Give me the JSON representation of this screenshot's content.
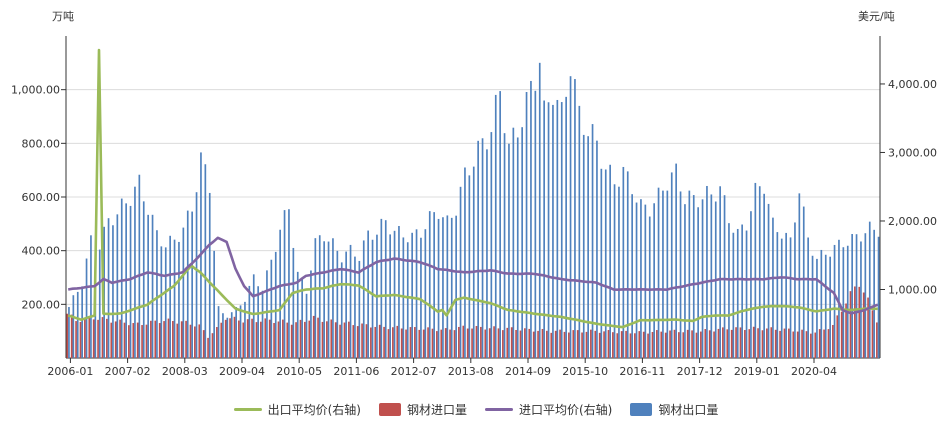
{
  "chart_data": {
    "type": "bar+line",
    "left_axis_unit": "万吨",
    "right_axis_unit": "美元/吨",
    "left_ticks": [
      "200.00",
      "400.00",
      "600.00",
      "800.00",
      "1,000.00"
    ],
    "right_ticks": [
      "1,000.00",
      "2,000.00",
      "3,000.00",
      "4,000.00"
    ],
    "ylim_left": [
      0,
      1200
    ],
    "ylim_right": [
      0,
      4700
    ],
    "x_ticks": [
      "2006-01",
      "2007-02",
      "2008-03",
      "2009-04",
      "2010-05",
      "2011-06",
      "2012-07",
      "2013-08",
      "2014-09",
      "2015-10",
      "2016-11",
      "2017-12",
      "2019-01",
      "2020-04"
    ],
    "series": [
      {
        "name": "出口平均价(右轴)",
        "type": "line",
        "axis": "right",
        "color": "#9bbb59",
        "anchors": [
          [
            0,
            620
          ],
          [
            3,
            560
          ],
          [
            6,
            620
          ],
          [
            7,
            4500
          ],
          [
            8,
            640
          ],
          [
            12,
            650
          ],
          [
            18,
            780
          ],
          [
            24,
            1050
          ],
          [
            28,
            1350
          ],
          [
            30,
            1250
          ],
          [
            34,
            980
          ],
          [
            38,
            720
          ],
          [
            42,
            640
          ],
          [
            48,
            700
          ],
          [
            51,
            950
          ],
          [
            54,
            1000
          ],
          [
            58,
            1020
          ],
          [
            62,
            1080
          ],
          [
            66,
            1060
          ],
          [
            70,
            900
          ],
          [
            74,
            920
          ],
          [
            80,
            860
          ],
          [
            84,
            680
          ],
          [
            85,
            700
          ],
          [
            86,
            620
          ],
          [
            88,
            850
          ],
          [
            90,
            880
          ],
          [
            96,
            800
          ],
          [
            100,
            700
          ],
          [
            108,
            630
          ],
          [
            112,
            600
          ],
          [
            120,
            500
          ],
          [
            126,
            450
          ],
          [
            130,
            550
          ],
          [
            138,
            560
          ],
          [
            142,
            540
          ],
          [
            144,
            600
          ],
          [
            147,
            620
          ],
          [
            150,
            620
          ],
          [
            154,
            700
          ],
          [
            158,
            750
          ],
          [
            162,
            760
          ],
          [
            166,
            740
          ],
          [
            170,
            680
          ],
          [
            174,
            720
          ],
          [
            178,
            700
          ],
          [
            181,
            720
          ],
          [
            184,
            720
          ]
        ]
      },
      {
        "name": "钢材进口量",
        "type": "bar",
        "axis": "left",
        "color": "#c0504d",
        "anchors": [
          [
            0,
            165
          ],
          [
            2,
            140
          ],
          [
            6,
            150
          ],
          [
            10,
            140
          ],
          [
            16,
            125
          ],
          [
            22,
            140
          ],
          [
            26,
            135
          ],
          [
            30,
            120
          ],
          [
            32,
            80
          ],
          [
            34,
            110
          ],
          [
            36,
            150
          ],
          [
            40,
            140
          ],
          [
            46,
            140
          ],
          [
            52,
            130
          ],
          [
            56,
            150
          ],
          [
            60,
            135
          ],
          [
            66,
            125
          ],
          [
            72,
            115
          ],
          [
            80,
            110
          ],
          [
            86,
            105
          ],
          [
            90,
            115
          ],
          [
            100,
            110
          ],
          [
            110,
            100
          ],
          [
            120,
            100
          ],
          [
            130,
            95
          ],
          [
            136,
            100
          ],
          [
            144,
            100
          ],
          [
            150,
            110
          ],
          [
            158,
            110
          ],
          [
            164,
            105
          ],
          [
            170,
            95
          ],
          [
            174,
            120
          ],
          [
            178,
            240
          ],
          [
            180,
            280
          ],
          [
            184,
            145
          ]
        ]
      },
      {
        "name": "进口平均价(右轴)",
        "type": "line",
        "axis": "right",
        "color": "#8064a2",
        "anchors": [
          [
            0,
            1000
          ],
          [
            6,
            1050
          ],
          [
            8,
            1150
          ],
          [
            10,
            1100
          ],
          [
            14,
            1150
          ],
          [
            18,
            1250
          ],
          [
            22,
            1200
          ],
          [
            26,
            1250
          ],
          [
            30,
            1500
          ],
          [
            32,
            1650
          ],
          [
            34,
            1750
          ],
          [
            36,
            1700
          ],
          [
            38,
            1300
          ],
          [
            40,
            1050
          ],
          [
            42,
            900
          ],
          [
            44,
            950
          ],
          [
            48,
            1050
          ],
          [
            52,
            1100
          ],
          [
            54,
            1200
          ],
          [
            58,
            1250
          ],
          [
            62,
            1300
          ],
          [
            66,
            1250
          ],
          [
            70,
            1400
          ],
          [
            74,
            1450
          ],
          [
            80,
            1400
          ],
          [
            84,
            1300
          ],
          [
            90,
            1250
          ],
          [
            96,
            1280
          ],
          [
            100,
            1230
          ],
          [
            106,
            1230
          ],
          [
            112,
            1150
          ],
          [
            120,
            1100
          ],
          [
            124,
            1000
          ],
          [
            126,
            1000
          ],
          [
            132,
            1000
          ],
          [
            136,
            1000
          ],
          [
            140,
            1050
          ],
          [
            144,
            1100
          ],
          [
            148,
            1150
          ],
          [
            152,
            1150
          ],
          [
            158,
            1150
          ],
          [
            162,
            1180
          ],
          [
            166,
            1150
          ],
          [
            170,
            1150
          ],
          [
            172,
            1050
          ],
          [
            174,
            950
          ],
          [
            176,
            700
          ],
          [
            178,
            650
          ],
          [
            181,
            700
          ],
          [
            184,
            780
          ]
        ]
      },
      {
        "name": "钢材出口量",
        "type": "bar",
        "axis": "left",
        "color": "#4f81bd",
        "anchors": [
          [
            0,
            190
          ],
          [
            3,
            280
          ],
          [
            5,
            440
          ],
          [
            7,
            420
          ],
          [
            9,
            510
          ],
          [
            11,
            540
          ],
          [
            14,
            600
          ],
          [
            16,
            650
          ],
          [
            18,
            560
          ],
          [
            20,
            460
          ],
          [
            22,
            420
          ],
          [
            24,
            440
          ],
          [
            26,
            480
          ],
          [
            28,
            560
          ],
          [
            30,
            740
          ],
          [
            32,
            650
          ],
          [
            34,
            170
          ],
          [
            36,
            160
          ],
          [
            38,
            180
          ],
          [
            40,
            220
          ],
          [
            42,
            300
          ],
          [
            44,
            260
          ],
          [
            46,
            360
          ],
          [
            48,
            480
          ],
          [
            50,
            560
          ],
          [
            52,
            310
          ],
          [
            54,
            250
          ],
          [
            56,
            430
          ],
          [
            58,
            460
          ],
          [
            60,
            420
          ],
          [
            62,
            380
          ],
          [
            64,
            400
          ],
          [
            66,
            380
          ],
          [
            68,
            460
          ],
          [
            70,
            470
          ],
          [
            72,
            510
          ],
          [
            74,
            470
          ],
          [
            76,
            460
          ],
          [
            78,
            450
          ],
          [
            80,
            470
          ],
          [
            82,
            520
          ],
          [
            84,
            550
          ],
          [
            86,
            500
          ],
          [
            88,
            560
          ],
          [
            90,
            680
          ],
          [
            92,
            740
          ],
          [
            94,
            800
          ],
          [
            96,
            850
          ],
          [
            98,
            1000
          ],
          [
            100,
            780
          ],
          [
            102,
            850
          ],
          [
            104,
            950
          ],
          [
            106,
            1050
          ],
          [
            107,
            1120
          ],
          [
            108,
            900
          ],
          [
            110,
            1000
          ],
          [
            112,
            900
          ],
          [
            114,
            1100
          ],
          [
            116,
            900
          ],
          [
            118,
            850
          ],
          [
            120,
            800
          ],
          [
            122,
            700
          ],
          [
            124,
            660
          ],
          [
            126,
            690
          ],
          [
            128,
            640
          ],
          [
            130,
            560
          ],
          [
            132,
            560
          ],
          [
            134,
            600
          ],
          [
            136,
            660
          ],
          [
            138,
            690
          ],
          [
            140,
            600
          ],
          [
            142,
            590
          ],
          [
            144,
            600
          ],
          [
            146,
            610
          ],
          [
            148,
            630
          ],
          [
            150,
            520
          ],
          [
            152,
            460
          ],
          [
            154,
            500
          ],
          [
            156,
            620
          ],
          [
            158,
            650
          ],
          [
            160,
            490
          ],
          [
            162,
            470
          ],
          [
            164,
            430
          ],
          [
            166,
            630
          ],
          [
            168,
            440
          ],
          [
            170,
            370
          ],
          [
            172,
            390
          ],
          [
            174,
            410
          ],
          [
            176,
            430
          ],
          [
            178,
            440
          ],
          [
            180,
            460
          ],
          [
            182,
            480
          ],
          [
            184,
            480
          ]
        ]
      }
    ]
  }
}
